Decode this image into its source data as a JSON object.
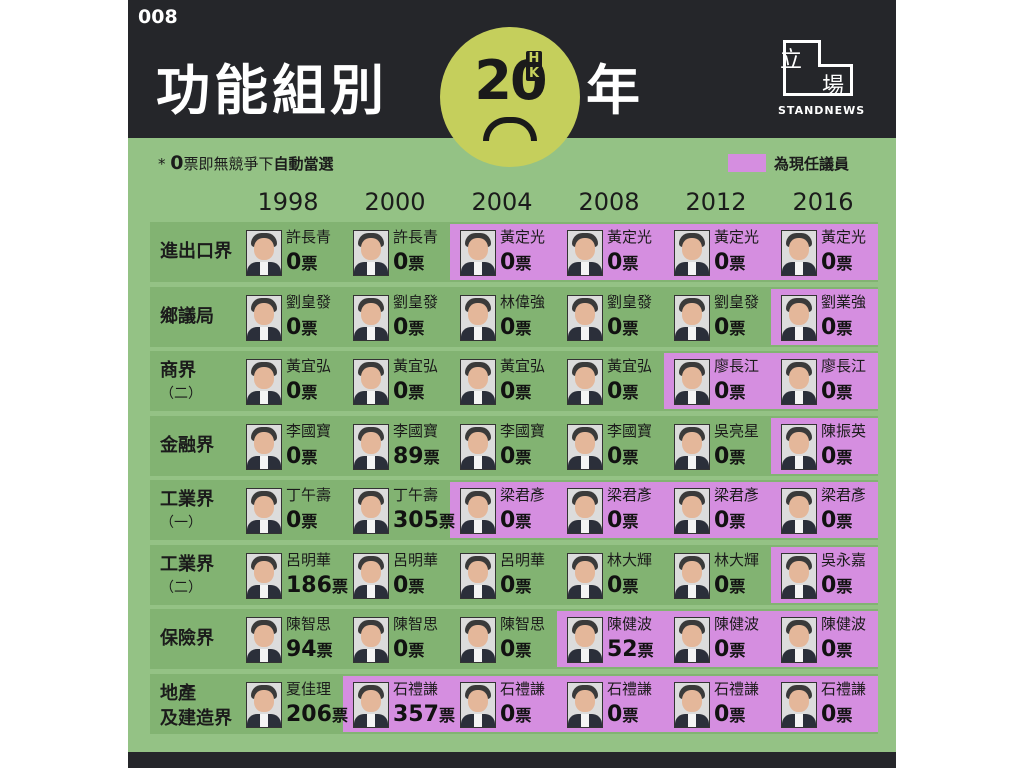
{
  "header": {
    "issue": "008",
    "title": "功能組別",
    "logo_number": "20",
    "logo_hk": "HK",
    "title_suffix": "年",
    "brand_li": "立",
    "brand_chang": "場",
    "brand_en": "STANDNEWS"
  },
  "note": {
    "prefix": "* ",
    "zero": "0",
    "text": "票即無競爭下",
    "bold": "自動當選"
  },
  "legend": {
    "label": "為現任議員",
    "color": "#d58ee0"
  },
  "colors": {
    "header_bg": "#25262a",
    "background": "#94c285",
    "row_bg": "#82b372",
    "incumbent": "#d58ee0",
    "logo": "#c5cf5c"
  },
  "years": [
    "1998",
    "2000",
    "2004",
    "2008",
    "2012",
    "2016"
  ],
  "rows": [
    {
      "label": "進出口界",
      "sub": "",
      "cells": [
        {
          "name": "許長青",
          "votes": "0",
          "unit": "票",
          "incumbent": false
        },
        {
          "name": "許長青",
          "votes": "0",
          "unit": "票",
          "incumbent": false
        },
        {
          "name": "黃定光",
          "votes": "0",
          "unit": "票",
          "incumbent": true
        },
        {
          "name": "黃定光",
          "votes": "0",
          "unit": "票",
          "incumbent": true
        },
        {
          "name": "黃定光",
          "votes": "0",
          "unit": "票",
          "incumbent": true
        },
        {
          "name": "黃定光",
          "votes": "0",
          "unit": "票",
          "incumbent": true
        }
      ]
    },
    {
      "label": "鄉議局",
      "sub": "",
      "cells": [
        {
          "name": "劉皇發",
          "votes": "0",
          "unit": "票",
          "incumbent": false
        },
        {
          "name": "劉皇發",
          "votes": "0",
          "unit": "票",
          "incumbent": false
        },
        {
          "name": "林偉強",
          "votes": "0",
          "unit": "票",
          "incumbent": false
        },
        {
          "name": "劉皇發",
          "votes": "0",
          "unit": "票",
          "incumbent": false
        },
        {
          "name": "劉皇發",
          "votes": "0",
          "unit": "票",
          "incumbent": false
        },
        {
          "name": "劉業強",
          "votes": "0",
          "unit": "票",
          "incumbent": true
        }
      ]
    },
    {
      "label": "商界",
      "sub": "（二）",
      "cells": [
        {
          "name": "黃宜弘",
          "votes": "0",
          "unit": "票",
          "incumbent": false
        },
        {
          "name": "黃宜弘",
          "votes": "0",
          "unit": "票",
          "incumbent": false
        },
        {
          "name": "黃宜弘",
          "votes": "0",
          "unit": "票",
          "incumbent": false
        },
        {
          "name": "黃宜弘",
          "votes": "0",
          "unit": "票",
          "incumbent": false
        },
        {
          "name": "廖長江",
          "votes": "0",
          "unit": "票",
          "incumbent": true
        },
        {
          "name": "廖長江",
          "votes": "0",
          "unit": "票",
          "incumbent": true
        }
      ]
    },
    {
      "label": "金融界",
      "sub": "",
      "cells": [
        {
          "name": "李國寶",
          "votes": "0",
          "unit": "票",
          "incumbent": false
        },
        {
          "name": "李國寶",
          "votes": "89",
          "unit": "票",
          "incumbent": false
        },
        {
          "name": "李國寶",
          "votes": "0",
          "unit": "票",
          "incumbent": false
        },
        {
          "name": "李國寶",
          "votes": "0",
          "unit": "票",
          "incumbent": false
        },
        {
          "name": "吳亮星",
          "votes": "0",
          "unit": "票",
          "incumbent": false
        },
        {
          "name": "陳振英",
          "votes": "0",
          "unit": "票",
          "incumbent": true
        }
      ]
    },
    {
      "label": "工業界",
      "sub": "（一）",
      "cells": [
        {
          "name": "丁午壽",
          "votes": "0",
          "unit": "票",
          "incumbent": false
        },
        {
          "name": "丁午壽",
          "votes": "305",
          "unit": "票",
          "incumbent": false
        },
        {
          "name": "梁君彥",
          "votes": "0",
          "unit": "票",
          "incumbent": true
        },
        {
          "name": "梁君彥",
          "votes": "0",
          "unit": "票",
          "incumbent": true
        },
        {
          "name": "梁君彥",
          "votes": "0",
          "unit": "票",
          "incumbent": true
        },
        {
          "name": "梁君彥",
          "votes": "0",
          "unit": "票",
          "incumbent": true
        }
      ]
    },
    {
      "label": "工業界",
      "sub": "（二）",
      "cells": [
        {
          "name": "呂明華",
          "votes": "186",
          "unit": "票",
          "incumbent": false
        },
        {
          "name": "呂明華",
          "votes": "0",
          "unit": "票",
          "incumbent": false
        },
        {
          "name": "呂明華",
          "votes": "0",
          "unit": "票",
          "incumbent": false
        },
        {
          "name": "林大輝",
          "votes": "0",
          "unit": "票",
          "incumbent": false
        },
        {
          "name": "林大輝",
          "votes": "0",
          "unit": "票",
          "incumbent": false
        },
        {
          "name": "吳永嘉",
          "votes": "0",
          "unit": "票",
          "incumbent": true
        }
      ]
    },
    {
      "label": "保險界",
      "sub": "",
      "cells": [
        {
          "name": "陳智思",
          "votes": "94",
          "unit": "票",
          "incumbent": false
        },
        {
          "name": "陳智思",
          "votes": "0",
          "unit": "票",
          "incumbent": false
        },
        {
          "name": "陳智思",
          "votes": "0",
          "unit": "票",
          "incumbent": false
        },
        {
          "name": "陳健波",
          "votes": "52",
          "unit": "票",
          "incumbent": true
        },
        {
          "name": "陳健波",
          "votes": "0",
          "unit": "票",
          "incumbent": true
        },
        {
          "name": "陳健波",
          "votes": "0",
          "unit": "票",
          "incumbent": true
        }
      ]
    },
    {
      "label": "地產",
      "sub": "及建造界",
      "cells": [
        {
          "name": "夏佳理",
          "votes": "206",
          "unit": "票",
          "incumbent": false
        },
        {
          "name": "石禮謙",
          "votes": "357",
          "unit": "票",
          "incumbent": true
        },
        {
          "name": "石禮謙",
          "votes": "0",
          "unit": "票",
          "incumbent": true
        },
        {
          "name": "石禮謙",
          "votes": "0",
          "unit": "票",
          "incumbent": true
        },
        {
          "name": "石禮謙",
          "votes": "0",
          "unit": "票",
          "incumbent": true
        },
        {
          "name": "石禮謙",
          "votes": "0",
          "unit": "票",
          "incumbent": true
        }
      ]
    }
  ]
}
